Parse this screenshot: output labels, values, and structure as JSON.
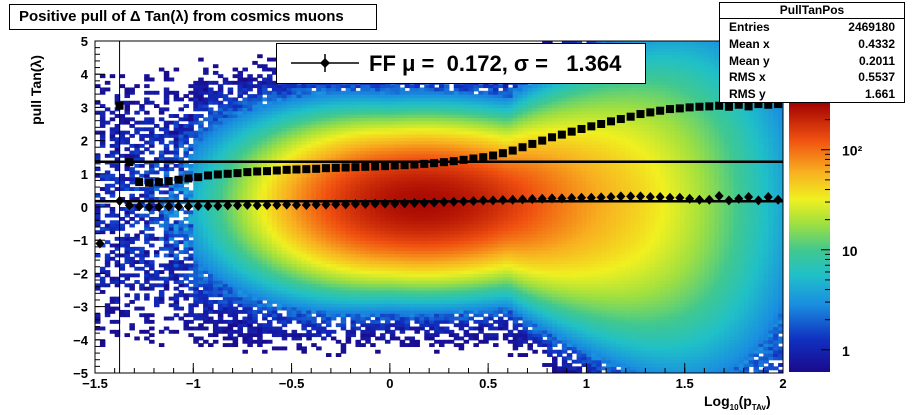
{
  "title": "Positive pull of Δ Tan(λ) from cosmics muons",
  "stats": {
    "name": "PullTanPos",
    "rows": [
      {
        "label": "Entries",
        "value": "2469180"
      },
      {
        "label": "Mean x",
        "value": "0.4332"
      },
      {
        "label": "Mean y",
        "value": "0.2011"
      },
      {
        "label": "RMS x",
        "value": "0.5537"
      },
      {
        "label": "RMS y",
        "value": "1.661"
      }
    ]
  },
  "legend": {
    "text": "FF μ =  0.172, σ =   1.364",
    "marker": "diamond"
  },
  "chart_data": {
    "type": "heatmap",
    "title": "Positive pull of Δ Tan(λ) from cosmics muons",
    "xlabel": "Log10(pTAv)",
    "ylabel": "pull Tan(λ)",
    "xlim": [
      -1.5,
      2
    ],
    "ylim": [
      -5,
      5
    ],
    "x_ticks": [
      "−1.5",
      "−1",
      "−0.5",
      "0",
      "0.5",
      "1",
      "1.5",
      "2"
    ],
    "x_tick_values": [
      -1.5,
      -1,
      -0.5,
      0,
      0.5,
      1,
      1.5,
      2
    ],
    "y_ticks": [
      "−5",
      "−4",
      "−3",
      "−2",
      "−1",
      "0",
      "1",
      "2",
      "3",
      "4",
      "5"
    ],
    "y_tick_values": [
      -5,
      -4,
      -3,
      -2,
      -1,
      0,
      1,
      2,
      3,
      4,
      5
    ],
    "colorbar": {
      "scale": "log",
      "min": 0.6,
      "max": 300,
      "tick_labels": [
        "1",
        "10",
        "10²"
      ],
      "tick_values": [
        1,
        10,
        100
      ]
    },
    "horizontal_lines": [
      {
        "name": "mean",
        "y": 0.172
      },
      {
        "name": "sigma",
        "y": 1.364
      }
    ],
    "series": [
      {
        "name": "mean",
        "marker": "diamond",
        "x": [
          -1.475,
          -1.375,
          -1.325,
          -1.275,
          -1.225,
          -1.175,
          -1.125,
          -1.075,
          -1.025,
          -0.975,
          -0.925,
          -0.875,
          -0.825,
          -0.775,
          -0.725,
          -0.675,
          -0.625,
          -0.575,
          -0.525,
          -0.475,
          -0.425,
          -0.375,
          -0.325,
          -0.275,
          -0.225,
          -0.175,
          -0.125,
          -0.075,
          -0.025,
          0.025,
          0.075,
          0.125,
          0.175,
          0.225,
          0.275,
          0.325,
          0.375,
          0.425,
          0.475,
          0.525,
          0.575,
          0.625,
          0.675,
          0.725,
          0.775,
          0.825,
          0.875,
          0.925,
          0.975,
          1.025,
          1.075,
          1.125,
          1.175,
          1.225,
          1.275,
          1.325,
          1.375,
          1.425,
          1.475,
          1.525,
          1.575,
          1.625,
          1.675,
          1.725,
          1.775,
          1.825,
          1.875,
          1.925,
          1.975
        ],
        "y": [
          -1.1,
          0.18,
          0.05,
          0.02,
          0.0,
          0.0,
          0.02,
          0.02,
          0.02,
          0.03,
          0.03,
          0.03,
          0.05,
          0.05,
          0.06,
          0.05,
          0.06,
          0.06,
          0.07,
          0.06,
          0.06,
          0.07,
          0.07,
          0.08,
          0.08,
          0.09,
          0.09,
          0.1,
          0.1,
          0.1,
          0.11,
          0.12,
          0.12,
          0.13,
          0.15,
          0.16,
          0.17,
          0.18,
          0.2,
          0.2,
          0.21,
          0.22,
          0.23,
          0.24,
          0.25,
          0.26,
          0.26,
          0.27,
          0.28,
          0.28,
          0.29,
          0.3,
          0.32,
          0.32,
          0.32,
          0.3,
          0.3,
          0.28,
          0.28,
          0.25,
          0.22,
          0.22,
          0.33,
          0.2,
          0.25,
          0.3,
          0.2,
          0.3,
          0.22
        ]
      },
      {
        "name": "sigma",
        "marker": "square",
        "x": [
          -1.375,
          -1.325,
          -1.275,
          -1.225,
          -1.175,
          -1.125,
          -1.075,
          -1.025,
          -0.975,
          -0.925,
          -0.875,
          -0.825,
          -0.775,
          -0.725,
          -0.675,
          -0.625,
          -0.575,
          -0.525,
          -0.475,
          -0.425,
          -0.375,
          -0.325,
          -0.275,
          -0.225,
          -0.175,
          -0.125,
          -0.075,
          -0.025,
          0.025,
          0.075,
          0.125,
          0.175,
          0.225,
          0.275,
          0.325,
          0.375,
          0.425,
          0.475,
          0.525,
          0.575,
          0.625,
          0.675,
          0.725,
          0.775,
          0.825,
          0.875,
          0.925,
          0.975,
          1.025,
          1.075,
          1.125,
          1.175,
          1.225,
          1.275,
          1.325,
          1.375,
          1.425,
          1.475,
          1.525,
          1.575,
          1.625,
          1.675,
          1.725,
          1.775,
          1.825,
          1.875,
          1.925,
          1.975
        ],
        "y": [
          3.05,
          1.35,
          0.75,
          0.73,
          0.75,
          0.78,
          0.82,
          0.86,
          0.9,
          0.95,
          0.98,
          1.0,
          1.02,
          1.05,
          1.07,
          1.08,
          1.1,
          1.12,
          1.13,
          1.14,
          1.15,
          1.17,
          1.18,
          1.19,
          1.2,
          1.21,
          1.22,
          1.23,
          1.25,
          1.26,
          1.28,
          1.3,
          1.32,
          1.35,
          1.38,
          1.42,
          1.46,
          1.5,
          1.55,
          1.62,
          1.7,
          1.8,
          1.9,
          2.0,
          2.1,
          2.18,
          2.27,
          2.35,
          2.43,
          2.5,
          2.58,
          2.65,
          2.72,
          2.8,
          2.85,
          2.9,
          2.95,
          2.97,
          3.0,
          3.02,
          3.03,
          3.05,
          3.02,
          3.08,
          3.03,
          3.1,
          3.08,
          3.1
        ]
      }
    ]
  }
}
